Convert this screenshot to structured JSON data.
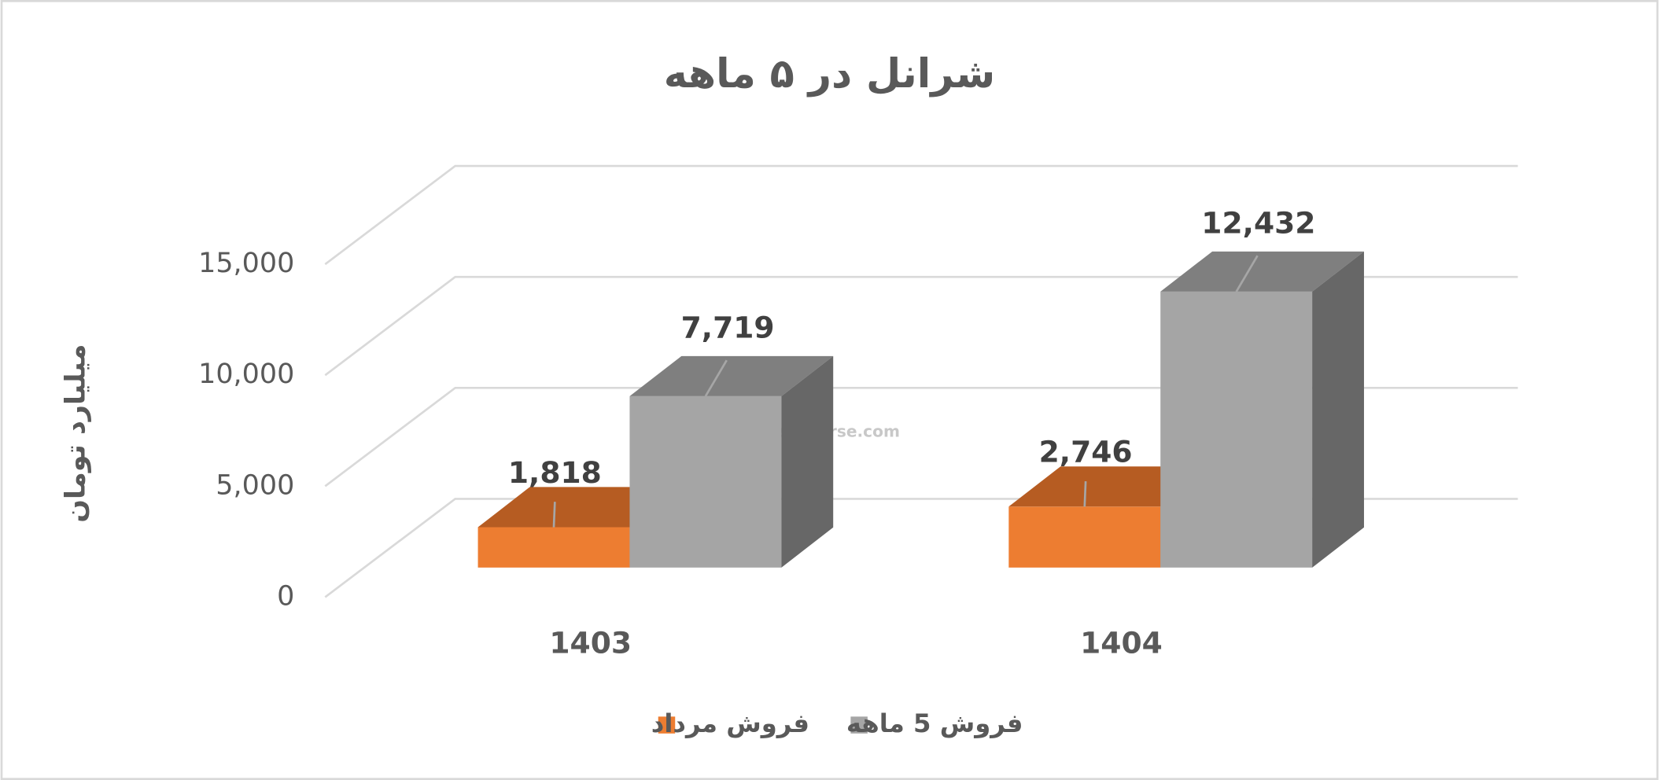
{
  "chart_data": {
    "type": "bar3d",
    "title": "شرانل در ۵ ماهه",
    "y_label": "میلیارد تومان",
    "watermark": "nabzebourse.com",
    "categories": [
      "1403",
      "1404"
    ],
    "series": [
      {
        "name": "فروش مرداد",
        "color": "#ED7D31",
        "top_color": "#B65C22",
        "side_color": "#B65C22",
        "values": [
          1818,
          2746
        ],
        "value_labels": [
          "1,818",
          "2,746"
        ]
      },
      {
        "name": "فروش 5 ماهه",
        "color": "#A5A5A5",
        "top_color": "#7F7F7F",
        "side_color": "#676767",
        "values": [
          7719,
          12432
        ],
        "value_labels": [
          "7,719",
          "12,432"
        ]
      }
    ],
    "ylim": [
      0,
      15000
    ],
    "yticks": [
      0,
      {
        "value": 5000,
        "label": "5,000"
      },
      {
        "value": 10000,
        "label": "10,000"
      },
      {
        "value": 15000,
        "label": "15,000"
      }
    ],
    "grid": true
  }
}
